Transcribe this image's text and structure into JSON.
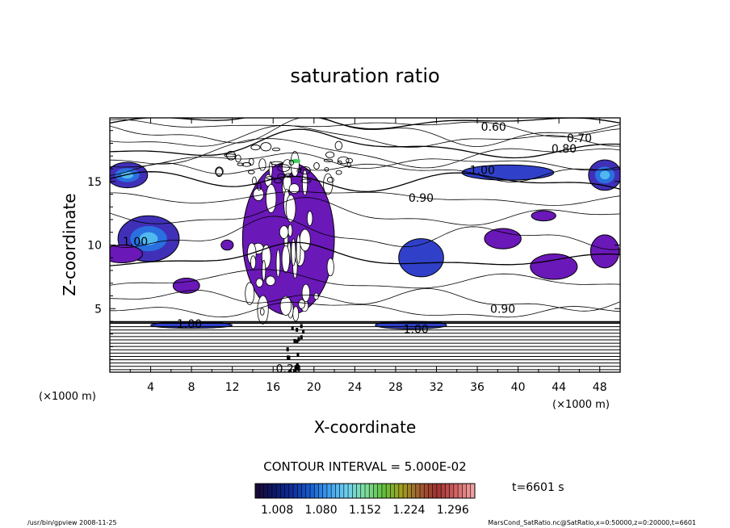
{
  "chart_data": {
    "type": "contour",
    "title": "saturation ratio",
    "xlabel": "X-coordinate",
    "ylabel": "Z-coordinate",
    "x_unit_label": "(×1000 m)",
    "y_unit_label": "(×1000 m)",
    "xlim": [
      0,
      50
    ],
    "ylim": [
      0,
      20
    ],
    "x_ticks": [
      4,
      8,
      12,
      16,
      20,
      24,
      28,
      32,
      36,
      40,
      44,
      48
    ],
    "y_ticks": [
      5,
      10,
      15
    ],
    "contour_interval_label": "CONTOUR INTERVAL = 5.000E-02",
    "time_label": "t=6601 s",
    "colorbar": {
      "tick_labels": [
        "1.008",
        "1.080",
        "1.152",
        "1.224",
        "1.296"
      ],
      "min": 0.972,
      "max": 1.332,
      "colors": [
        "#1a0a3a",
        "#0a1a6a",
        "#1030a0",
        "#1860d0",
        "#40a0f0",
        "#70d0f0",
        "#80e0a0",
        "#60c040",
        "#a0a020",
        "#a06030",
        "#a03030",
        "#d06060",
        "#f0a0a0"
      ]
    },
    "contour_labels": [
      {
        "text": "0.60",
        "x": 37.6,
        "z": 19.3
      },
      {
        "text": "0.70",
        "x": 46.0,
        "z": 18.4
      },
      {
        "text": "0.80",
        "x": 44.5,
        "z": 17.6
      },
      {
        "text": "1.00",
        "x": 36.5,
        "z": 15.9
      },
      {
        "text": "0.90",
        "x": 30.5,
        "z": 13.7
      },
      {
        "text": "1.00",
        "x": 2.5,
        "z": 10.3
      },
      {
        "text": "0.90",
        "x": 38.5,
        "z": 5.0
      },
      {
        "text": "1.00",
        "x": 7.8,
        "z": 3.8
      },
      {
        "text": "1.00",
        "x": 30.0,
        "z": 3.4
      },
      {
        "text": "0.20",
        "x": 17.5,
        "z": 0.3
      }
    ],
    "filled_regions": [
      {
        "cx": 1.7,
        "cz": 15.5,
        "rx": 2.0,
        "rz": 1.0,
        "level": "high"
      },
      {
        "cx": 3.8,
        "cz": 10.5,
        "rx": 3.0,
        "rz": 1.8,
        "level": "high"
      },
      {
        "cx": 1.2,
        "cz": 9.3,
        "rx": 2.0,
        "rz": 0.7,
        "level": "low"
      },
      {
        "cx": 17.5,
        "cz": 10.5,
        "rx": 4.5,
        "rz": 6.0,
        "level": "low"
      },
      {
        "cx": 39.0,
        "cz": 15.7,
        "rx": 4.5,
        "rz": 0.6,
        "level": "mid"
      },
      {
        "cx": 48.5,
        "cz": 15.5,
        "rx": 1.6,
        "rz": 1.2,
        "level": "high"
      },
      {
        "cx": 30.5,
        "cz": 9.0,
        "rx": 2.2,
        "rz": 1.5,
        "level": "mid"
      },
      {
        "cx": 38.5,
        "cz": 10.5,
        "rx": 1.8,
        "rz": 0.8,
        "level": "low"
      },
      {
        "cx": 43.5,
        "cz": 8.3,
        "rx": 2.3,
        "rz": 1.0,
        "level": "low"
      },
      {
        "cx": 48.5,
        "cz": 9.5,
        "rx": 1.4,
        "rz": 1.3,
        "level": "low"
      },
      {
        "cx": 42.5,
        "cz": 12.3,
        "rx": 1.2,
        "rz": 0.4,
        "level": "low"
      },
      {
        "cx": 7.5,
        "cz": 6.8,
        "rx": 1.3,
        "rz": 0.6,
        "level": "low"
      },
      {
        "cx": 11.5,
        "cz": 10.0,
        "rx": 0.6,
        "rz": 0.4,
        "level": "low"
      },
      {
        "cx": 8.0,
        "cz": 3.7,
        "rx": 4.0,
        "rz": 0.25,
        "level": "mid"
      },
      {
        "cx": 29.5,
        "cz": 3.7,
        "rx": 3.5,
        "rz": 0.3,
        "level": "mid"
      }
    ]
  },
  "footer": {
    "left": "/usr/bin/gpview   2008-11-25",
    "right": "MarsCond_SatRatio.nc@SatRatio,x=0:50000,z=0:20000,t=6601"
  }
}
